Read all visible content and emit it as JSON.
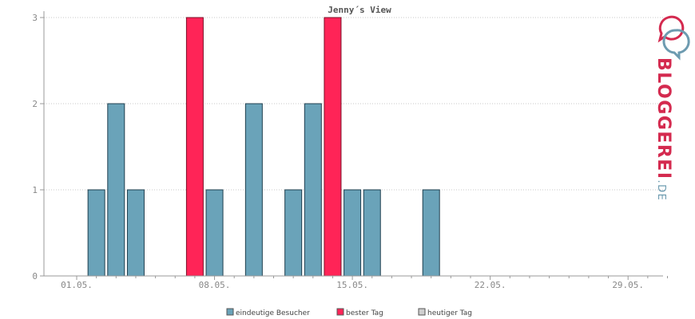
{
  "chart_data": {
    "type": "bar",
    "title": "Jenny´s View",
    "xlabel": "",
    "ylabel": "",
    "ylim": [
      0,
      3
    ],
    "yticks": [
      "0",
      "1",
      "2",
      "3"
    ],
    "x_range": [
      1,
      31
    ],
    "x_tick_labels": [
      {
        "day": 1,
        "label": "01.05."
      },
      {
        "day": 8,
        "label": "08.05."
      },
      {
        "day": 15,
        "label": "15.05."
      },
      {
        "day": 22,
        "label": "22.05."
      },
      {
        "day": 29,
        "label": "29.05."
      }
    ],
    "grid": true,
    "legend_position": "bottom",
    "series": [
      {
        "name": "eindeutige Besucher",
        "color": "#6aa3b9",
        "points": [
          {
            "day": 2,
            "value": 1
          },
          {
            "day": 3,
            "value": 2
          },
          {
            "day": 4,
            "value": 1
          },
          {
            "day": 8,
            "value": 1
          },
          {
            "day": 10,
            "value": 2
          },
          {
            "day": 12,
            "value": 1
          },
          {
            "day": 13,
            "value": 2
          },
          {
            "day": 15,
            "value": 1
          },
          {
            "day": 16,
            "value": 1
          },
          {
            "day": 19,
            "value": 1
          }
        ]
      },
      {
        "name": "bester Tag",
        "color": "#ff2457",
        "points": [
          {
            "day": 7,
            "value": 3
          },
          {
            "day": 14,
            "value": 3
          }
        ]
      },
      {
        "name": "heutiger Tag",
        "color": "#cfcfcf",
        "points": []
      }
    ]
  },
  "logo": {
    "text": "BLOGGEREI",
    "suffix": ".DE",
    "red": "#d42a4f",
    "blue": "#6d9bb0"
  }
}
